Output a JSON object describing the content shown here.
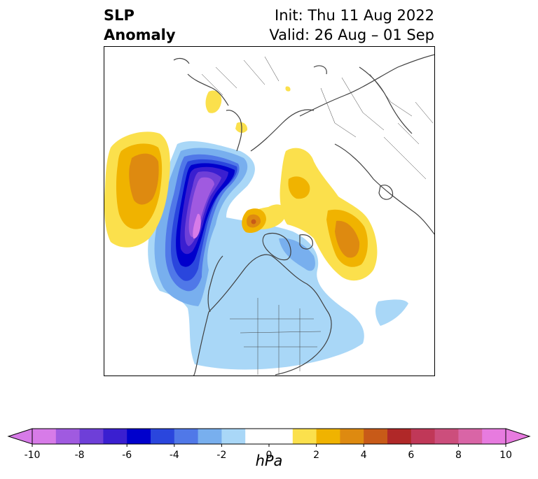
{
  "title": {
    "left_line1": "SLP",
    "left_line2": "Anomaly",
    "right_line1": "Init: Thu 11 Aug 2022",
    "right_line2": "Valid: 26 Aug – 01 Sep"
  },
  "colorbar": {
    "unit": "hPa",
    "tick_labels": [
      "-10",
      "-8",
      "-6",
      "-4",
      "-2",
      "0",
      "2",
      "4",
      "6",
      "8",
      "10"
    ],
    "range": [
      -10,
      10
    ],
    "step": 1,
    "colors": [
      "#d77be8",
      "#a05ae0",
      "#6e3fd8",
      "#3a1fd0",
      "#0000cc",
      "#2a46dd",
      "#5078e8",
      "#78afee",
      "#a9d7f7",
      "#ffffff",
      "#ffffff",
      "#fbe04c",
      "#f0b300",
      "#de8a10",
      "#c85a18",
      "#b02828",
      "#c03858",
      "#cc4e7c",
      "#d965a6",
      "#e77bdf"
    ]
  }
}
